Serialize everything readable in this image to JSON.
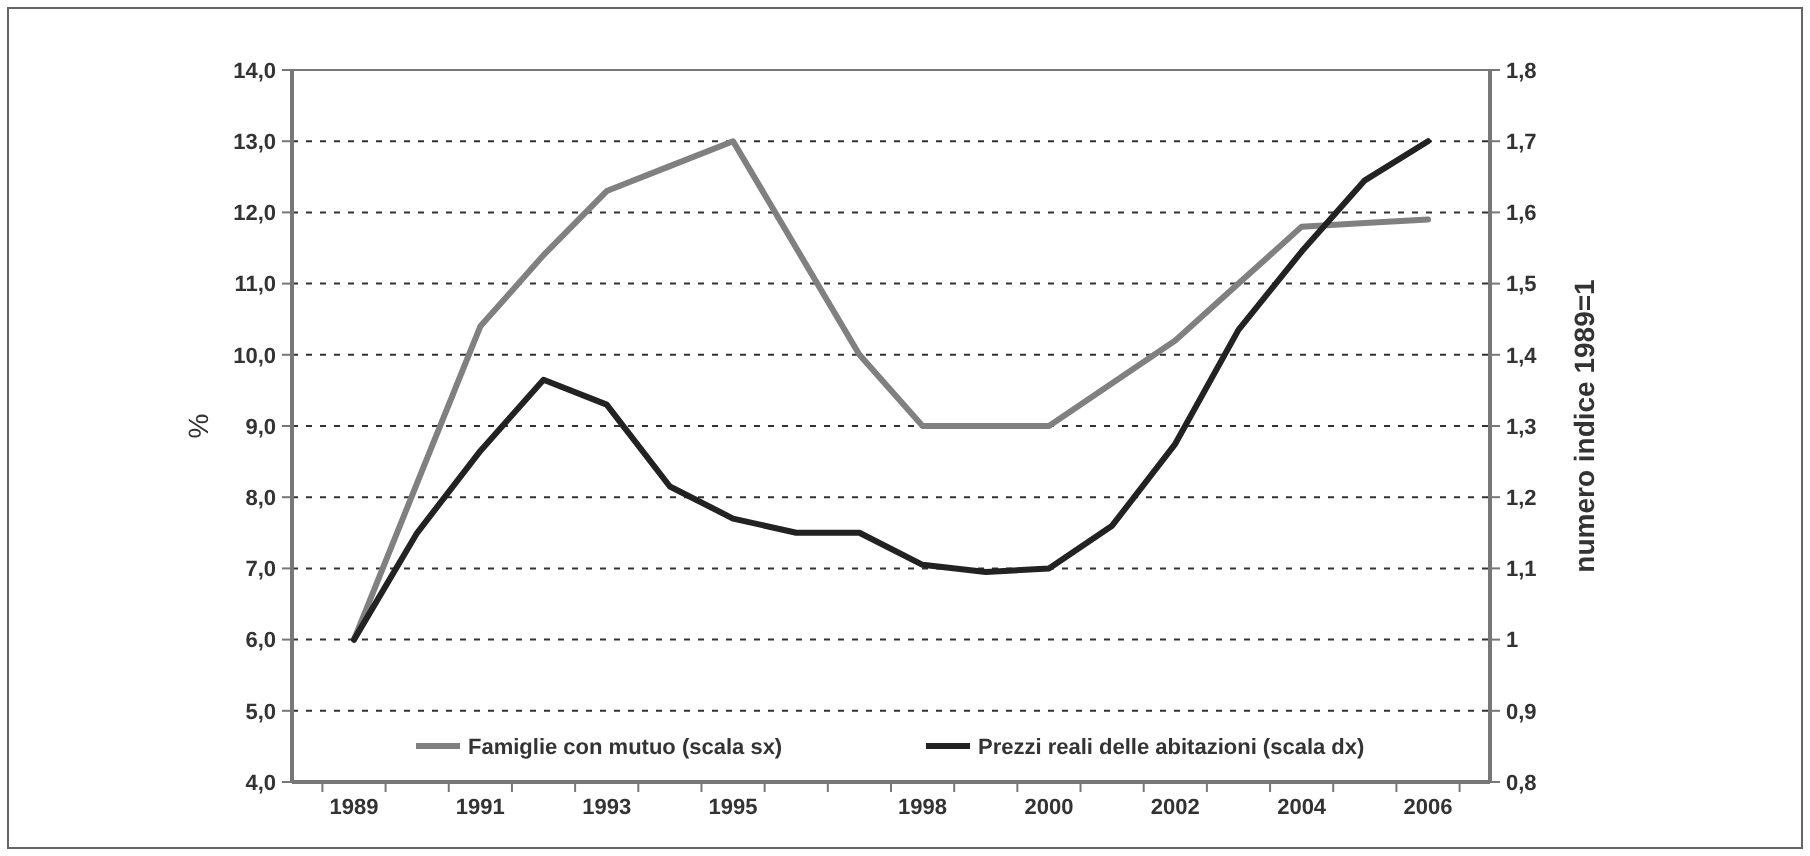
{
  "chart_data": {
    "type": "line",
    "categories": [
      "1989",
      null,
      "1991",
      null,
      "1993",
      null,
      "1995",
      null,
      null,
      "1998",
      null,
      "2000",
      null,
      "2002",
      null,
      "2004",
      null,
      "2006"
    ],
    "ylabel": "%",
    "y2label": "numero indice 1989=1",
    "ylim": [
      4,
      14
    ],
    "yticks": [
      {
        "value": 4,
        "label": "4,0"
      },
      {
        "value": 5,
        "label": "5,0"
      },
      {
        "value": 6,
        "label": "6,0"
      },
      {
        "value": 7,
        "label": "7,0"
      },
      {
        "value": 8,
        "label": "8,0"
      },
      {
        "value": 9,
        "label": "9,0"
      },
      {
        "value": 10,
        "label": "10,0"
      },
      {
        "value": 11,
        "label": "11,0"
      },
      {
        "value": 12,
        "label": "12,0"
      },
      {
        "value": 13,
        "label": "13,0"
      },
      {
        "value": 14,
        "label": "14,0"
      }
    ],
    "y2lim": [
      0.8,
      1.8
    ],
    "y2ticks": [
      {
        "value": 0.8,
        "label": "0,8"
      },
      {
        "value": 0.9,
        "label": "0,9"
      },
      1,
      {
        "value": 1.1,
        "label": "1,1"
      },
      {
        "value": 1.2,
        "label": "1,2"
      },
      {
        "value": 1.3,
        "label": "1,3"
      },
      {
        "value": 1.4,
        "label": "1,4"
      },
      {
        "value": 1.5,
        "label": "1,5"
      },
      {
        "value": 1.6,
        "label": "1,6"
      },
      {
        "value": 1.7,
        "label": "1,7"
      },
      {
        "value": 1.8,
        "label": "1,8"
      }
    ],
    "grid": "y",
    "legend": "bottom",
    "line_style": "solid",
    "series": [
      {
        "name": "Famiglie con mutuo (scala sx)",
        "color": "#808080",
        "values": [
          6.0,
          8.2,
          10.4,
          11.4,
          12.3,
          12.65,
          13.0,
          11.5,
          10.0,
          9.0,
          9.0,
          9.0,
          9.6,
          10.2,
          11.0,
          11.8,
          11.85,
          11.9
        ]
      },
      {
        "name": "Prezzi reali delle abitazioni (scala dx)",
        "color": "#222222",
        "axis": "y2",
        "values": [
          1.0,
          1.15,
          1.265,
          1.365,
          1.33,
          1.215,
          1.17,
          1.15,
          1.15,
          1.105,
          1.095,
          1.1,
          1.16,
          1.275,
          1.435,
          1.545,
          1.645,
          1.7
        ]
      }
    ]
  }
}
